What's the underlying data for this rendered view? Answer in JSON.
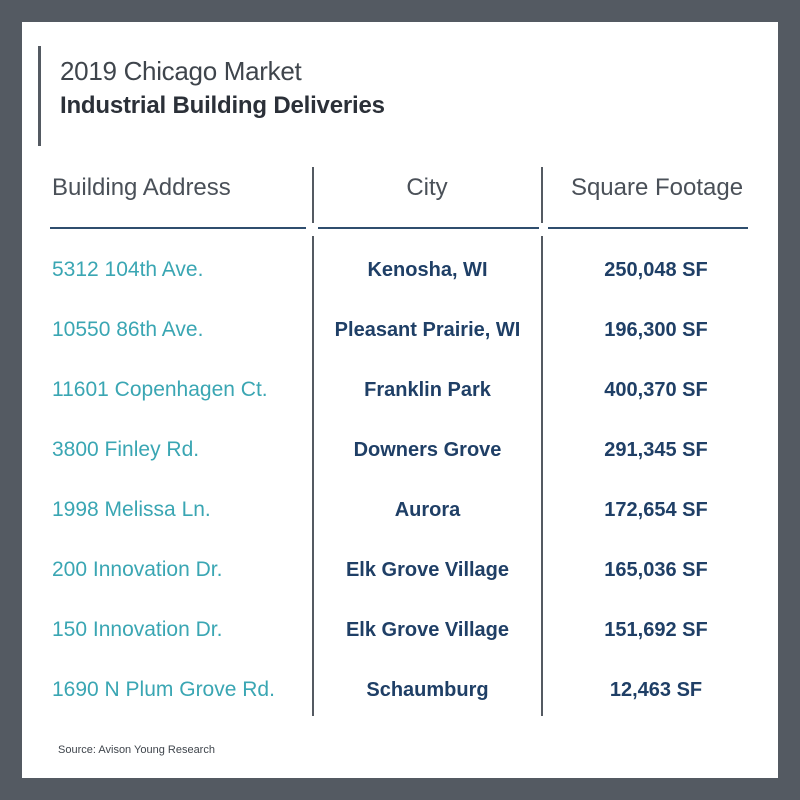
{
  "title": {
    "line1": "2019 Chicago Market",
    "line2": "Industrial Building Deliveries"
  },
  "table": {
    "headers": [
      "Building Address",
      "City",
      "Square Footage"
    ],
    "rows": [
      {
        "address": "5312 104th Ave.",
        "city": "Kenosha, WI",
        "sqft": "250,048 SF"
      },
      {
        "address": "10550 86th Ave.",
        "city": "Pleasant Prairie, WI",
        "sqft": "196,300 SF"
      },
      {
        "address": "11601 Copenhagen Ct.",
        "city": "Franklin Park",
        "sqft": "400,370 SF"
      },
      {
        "address": "3800 Finley Rd.",
        "city": "Downers Grove",
        "sqft": "291,345 SF"
      },
      {
        "address": "1998 Melissa Ln.",
        "city": "Aurora",
        "sqft": "172,654 SF"
      },
      {
        "address": "200 Innovation Dr.",
        "city": "Elk Grove Village",
        "sqft": "165,036 SF"
      },
      {
        "address": "150 Innovation Dr.",
        "city": "Elk Grove Village",
        "sqft": "151,692 SF"
      },
      {
        "address": "1690 N Plum Grove Rd.",
        "city": "Schaumburg",
        "sqft": "12,463 SF"
      }
    ]
  },
  "source": "Source: Avison Young Research",
  "colors": {
    "frame": "#545a62",
    "address": "#3aa6b3",
    "value": "#1f3f66",
    "rule": "#2f4e6e"
  }
}
